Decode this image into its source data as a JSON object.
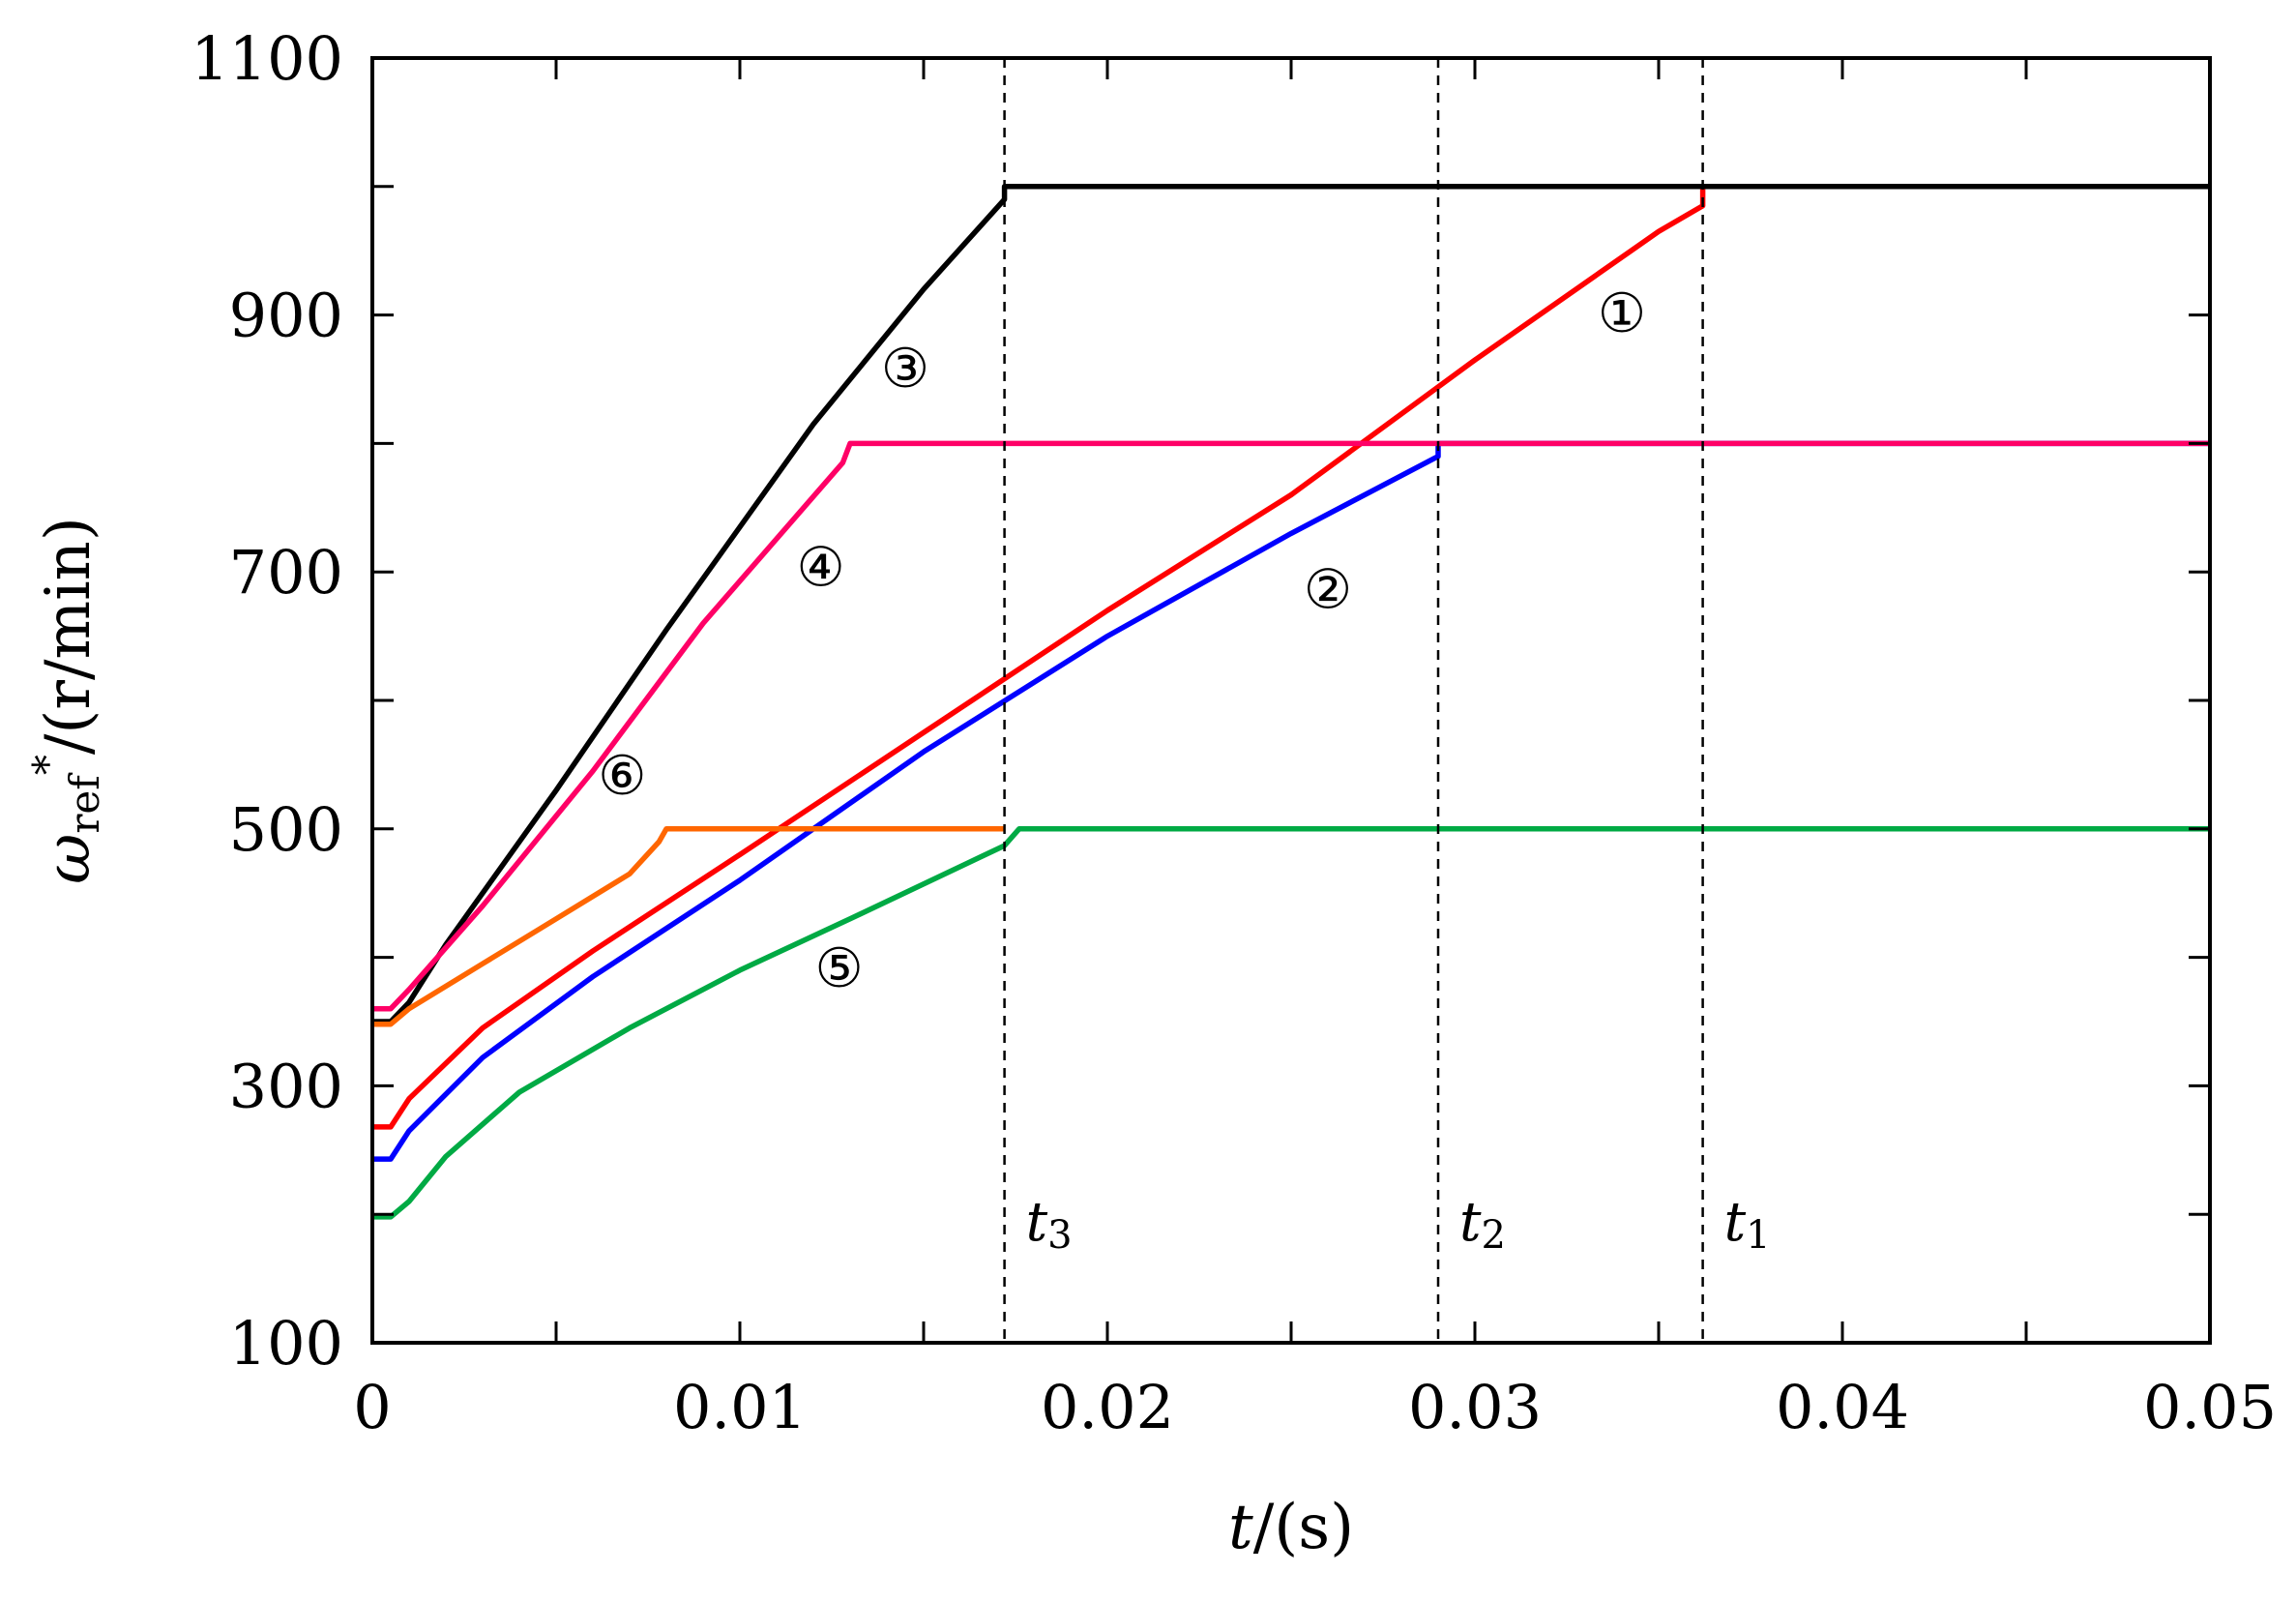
{
  "chart_data": {
    "type": "line",
    "xlabel": {
      "italic": "t",
      "rest": "/(s)"
    },
    "ylabel": {
      "symbol": "ω",
      "sub": "ref",
      "sup": "*",
      "rest": "/(r/min)"
    },
    "xlim": [
      0,
      0.05
    ],
    "ylim": [
      100,
      1100
    ],
    "xticks": [
      0,
      0.01,
      0.02,
      0.03,
      0.04,
      0.05
    ],
    "xtick_labels": [
      "0",
      "0.01",
      "0.02",
      "0.03",
      "0.04",
      "0.05"
    ],
    "yticks": [
      100,
      300,
      500,
      700,
      900,
      1100
    ],
    "ytick_labels": [
      "100",
      "300",
      "500",
      "700",
      "900",
      "1100"
    ],
    "grid": false,
    "series": [
      {
        "label": "①",
        "color": "#ff0000",
        "x": [
          0,
          0.0005,
          0.001,
          0.003,
          0.006,
          0.01,
          0.015,
          0.02,
          0.025,
          0.03,
          0.035,
          0.0362,
          0.0362,
          0.05
        ],
        "y": [
          268,
          268,
          290,
          345,
          405,
          480,
          575,
          670,
          760,
          865,
          965,
          985,
          1000,
          1000
        ],
        "label_pos": [
          0.034,
          898
        ]
      },
      {
        "label": "②",
        "color": "#0000ff",
        "x": [
          0,
          0.0005,
          0.001,
          0.003,
          0.006,
          0.01,
          0.015,
          0.02,
          0.025,
          0.029,
          0.029,
          0.05
        ],
        "y": [
          243,
          243,
          265,
          322,
          385,
          460,
          560,
          650,
          730,
          790,
          800,
          800
        ],
        "label_pos": [
          0.026,
          683
        ]
      },
      {
        "label": "③",
        "color": "#000000",
        "x": [
          0,
          0.0005,
          0.001,
          0.002,
          0.005,
          0.008,
          0.012,
          0.015,
          0.0172,
          0.0172,
          0.05
        ],
        "y": [
          350,
          350,
          365,
          410,
          530,
          655,
          815,
          920,
          990,
          1000,
          1000
        ],
        "label_pos": [
          0.0145,
          855
        ]
      },
      {
        "label": "④",
        "color": "#ff0066",
        "x": [
          0,
          0.0005,
          0.001,
          0.003,
          0.006,
          0.009,
          0.0128,
          0.013,
          0.05
        ],
        "y": [
          360,
          360,
          375,
          440,
          545,
          660,
          785,
          800,
          800
        ],
        "label_pos": [
          0.0122,
          700
        ]
      },
      {
        "label": "⑤",
        "color": "#00aa44",
        "x": [
          0,
          0.0005,
          0.001,
          0.002,
          0.004,
          0.007,
          0.01,
          0.013,
          0.0172,
          0.0176,
          0.05
        ],
        "y": [
          198,
          198,
          210,
          245,
          295,
          345,
          390,
          430,
          487,
          500,
          500
        ],
        "label_pos": [
          0.0127,
          388
        ]
      },
      {
        "label": "⑥",
        "color": "#ff6600",
        "x": [
          0,
          0.0005,
          0.001,
          0.003,
          0.005,
          0.007,
          0.0078,
          0.008,
          0.0172
        ],
        "y": [
          348,
          348,
          360,
          395,
          430,
          465,
          490,
          500,
          500
        ],
        "label_pos": [
          0.0068,
          538
        ]
      }
    ],
    "vlines": [
      {
        "x": 0.0172,
        "label": "t",
        "sub": "3"
      },
      {
        "x": 0.029,
        "label": "t",
        "sub": "2"
      },
      {
        "x": 0.0362,
        "label": "t",
        "sub": "1"
      }
    ],
    "vline_label_y": 180
  }
}
